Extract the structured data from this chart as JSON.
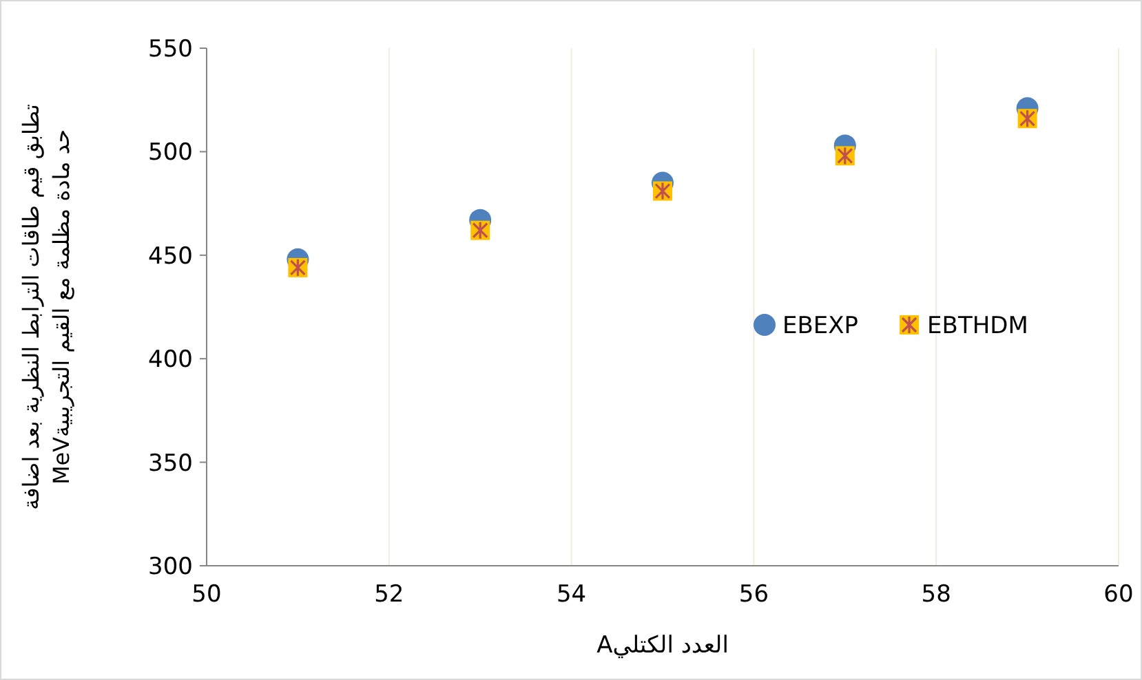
{
  "chart_data": {
    "type": "scatter",
    "xlabel": "العدد الكتليA",
    "ylabel": "تطابق قيم طاقات الترابط النظرية بعد اضافة\nحد مادة مظلمة مع القيم التجريبيةMeV",
    "x": [
      51,
      53,
      55,
      57,
      59
    ],
    "series": [
      {
        "name": "EBEXP",
        "color": "#4f81bd",
        "marker": "circle",
        "values": [
          448,
          467,
          485,
          503,
          521
        ]
      },
      {
        "name": "EBTHDM",
        "color": "#ffc000",
        "marker": "square",
        "values": [
          444,
          462,
          481,
          498,
          516
        ]
      }
    ],
    "xlim": [
      50,
      60
    ],
    "xticks": [
      50,
      52,
      54,
      56,
      58,
      60
    ],
    "ylim": [
      300,
      550
    ],
    "yticks": [
      300,
      350,
      400,
      450,
      500,
      550
    ],
    "grid": "x",
    "legend": "right"
  }
}
